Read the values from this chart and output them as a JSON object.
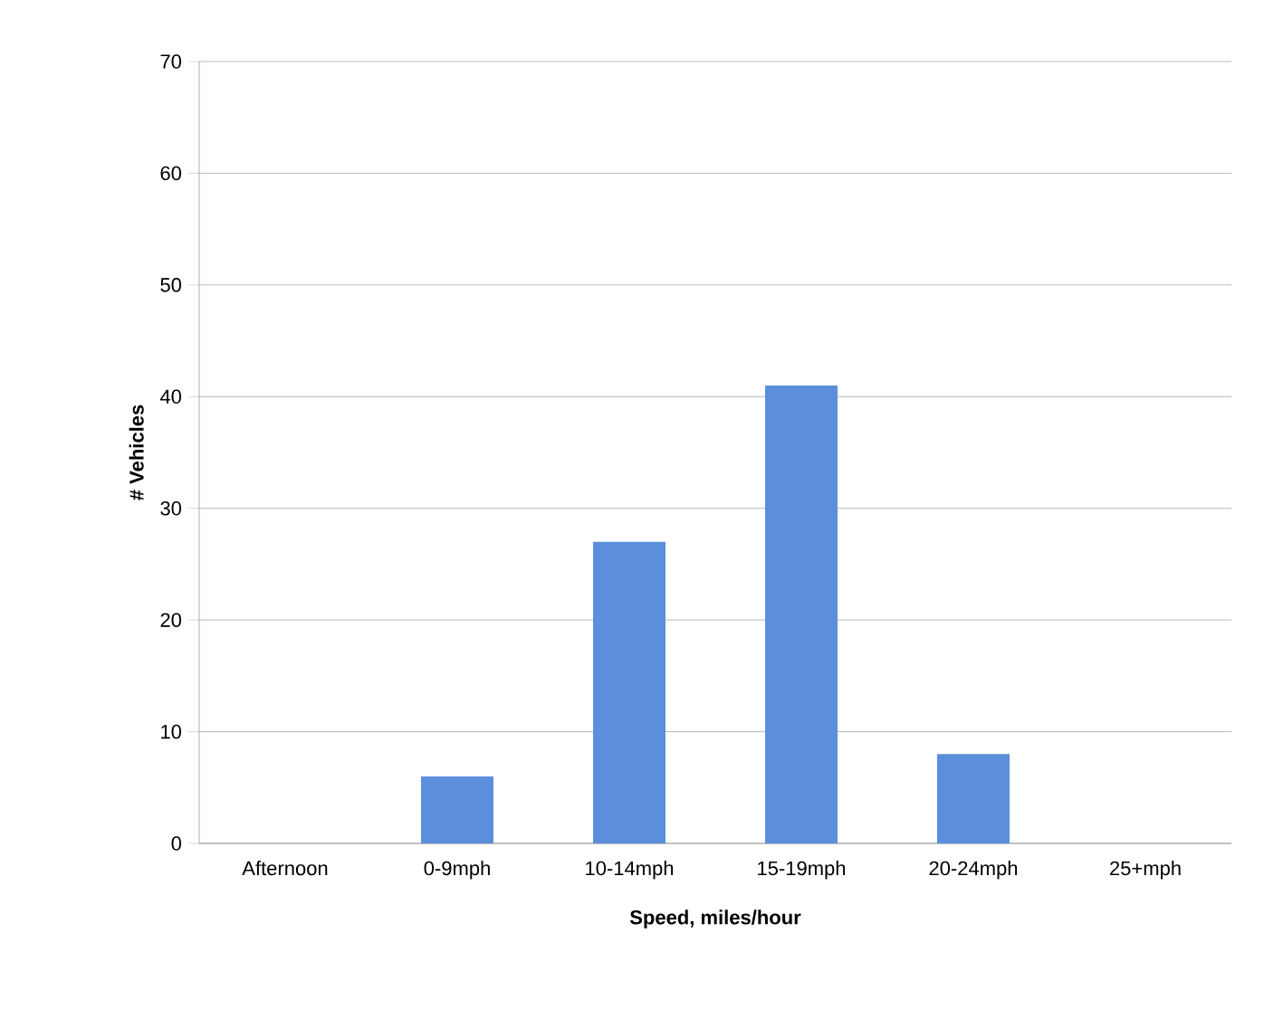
{
  "chart_data": {
    "type": "bar",
    "xlabel": "Speed,  miles/hour",
    "ylabel": "# Vehicles",
    "categories": [
      "Afternoon",
      "0-9mph",
      "10-14mph",
      "15-19mph",
      "20-24mph",
      "25+mph"
    ],
    "values": [
      0,
      6,
      27,
      41,
      8,
      0
    ],
    "color": "#5b8fdc",
    "ylim": [
      0,
      70
    ],
    "yticks": [
      0,
      10,
      20,
      30,
      40,
      50,
      60,
      70
    ],
    "grid": "y"
  }
}
